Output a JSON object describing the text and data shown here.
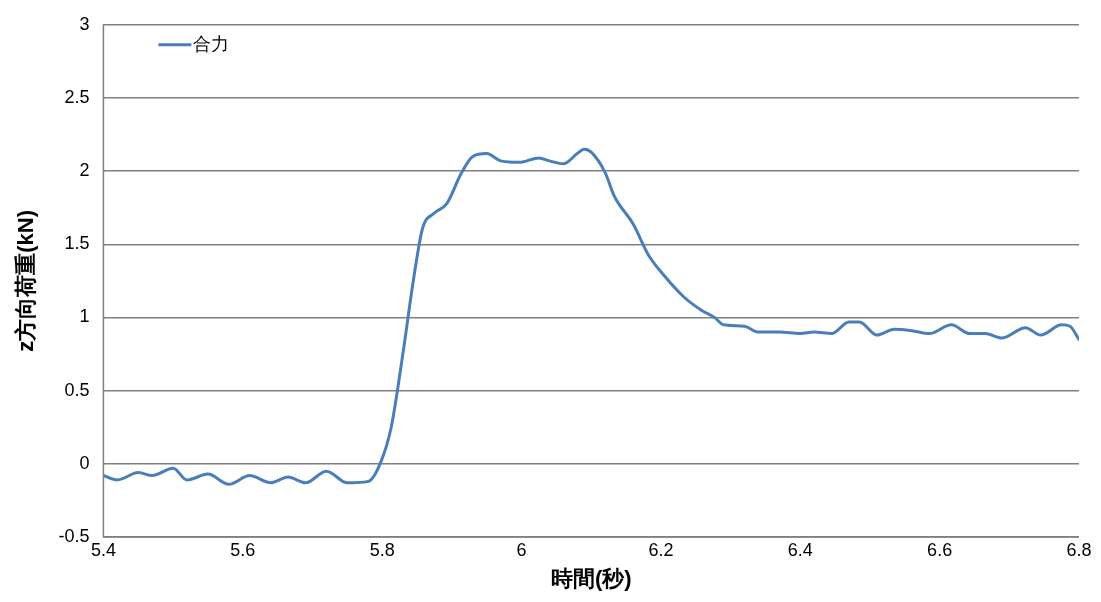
{
  "chart_data": {
    "type": "line",
    "xlabel": "時間(秒)",
    "ylabel": "z方向荷重(kN)",
    "xlim": [
      5.4,
      6.8
    ],
    "xticks": [
      5.4,
      5.6,
      5.8,
      6,
      6.2,
      6.4,
      6.6,
      6.8
    ],
    "ylim": [
      -0.5,
      3
    ],
    "yticks": [
      -0.5,
      0,
      0.5,
      1,
      1.5,
      2,
      2.5,
      3
    ],
    "grid": "y",
    "legend": "top left",
    "marker": "none",
    "line_style": "solid",
    "series": [
      {
        "name": "合力",
        "color": "#4a7ebb",
        "x": [
          5.4,
          5.42,
          5.45,
          5.47,
          5.5,
          5.52,
          5.55,
          5.58,
          5.61,
          5.64,
          5.665,
          5.69,
          5.72,
          5.75,
          5.78,
          5.797,
          5.813,
          5.83,
          5.845,
          5.858,
          5.874,
          5.893,
          5.913,
          5.93,
          5.95,
          5.97,
          5.997,
          6.025,
          6.04,
          6.06,
          6.08,
          6.09,
          6.1,
          6.12,
          6.133,
          6.16,
          6.183,
          6.204,
          6.233,
          6.258,
          6.277,
          6.29,
          6.32,
          6.34,
          6.37,
          6.4,
          6.42,
          6.445,
          6.47,
          6.485,
          6.51,
          6.535,
          6.56,
          6.585,
          6.617,
          6.643,
          6.665,
          6.69,
          6.723,
          6.745,
          6.775,
          6.787,
          6.8
        ],
        "values": [
          -0.08,
          -0.11,
          -0.06,
          -0.08,
          -0.03,
          -0.11,
          -0.07,
          -0.14,
          -0.08,
          -0.13,
          -0.09,
          -0.13,
          -0.05,
          -0.13,
          -0.12,
          0,
          0.25,
          0.76,
          1.26,
          1.61,
          1.71,
          1.78,
          1.98,
          2.1,
          2.12,
          2.07,
          2.06,
          2.09,
          2.07,
          2.05,
          2.12,
          2.15,
          2.13,
          1.99,
          1.83,
          1.64,
          1.42,
          1.29,
          1.14,
          1.05,
          1.0,
          0.95,
          0.94,
          0.9,
          0.9,
          0.89,
          0.9,
          0.89,
          0.97,
          0.97,
          0.88,
          0.92,
          0.91,
          0.89,
          0.95,
          0.89,
          0.89,
          0.86,
          0.93,
          0.88,
          0.95,
          0.94,
          0.85
        ]
      }
    ]
  }
}
